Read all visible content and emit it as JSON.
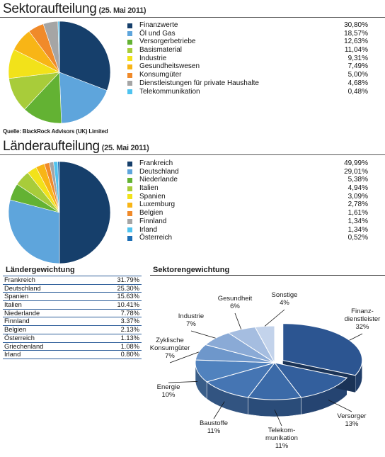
{
  "sector_section": {
    "title": "Sektoraufteilung",
    "date": "(25. Mai 2011)",
    "source": "Quelle: BlackRock Advisors (UK) Limited"
  },
  "country_section": {
    "title": "Länderaufteilung",
    "date": "(25. Mai 2011)"
  },
  "country_weight_title": "Ländergewichtung",
  "sector_weight_title": "Sektorengewichtung",
  "colors": {
    "palette": [
      "#163f6b",
      "#5ea5dc",
      "#63b233",
      "#a8cc3a",
      "#f2e21a",
      "#f8b516",
      "#f08a2a",
      "#a5a5a5",
      "#4fc3ef",
      "#1d6eb5"
    ],
    "table_rule": "#2f5f9a"
  },
  "chart_data": [
    {
      "type": "pie",
      "title": "Sektoraufteilung",
      "categories": [
        "Finanzwerte",
        "Öl und Gas",
        "Versorgerbetriebe",
        "Basismaterial",
        "Industrie",
        "Gesundheitswesen",
        "Konsumgüter",
        "Dienstleistungen für private Haushalte",
        "Telekommunikation"
      ],
      "values": [
        30.8,
        18.57,
        12.63,
        11.04,
        9.31,
        7.49,
        5.0,
        4.68,
        0.48
      ],
      "labels": [
        "30,80%",
        "18,57%",
        "12,63%",
        "11,04%",
        "9,31%",
        "7,49%",
        "5,00%",
        "4,68%",
        "0,48%"
      ],
      "legend": "right"
    },
    {
      "type": "pie",
      "title": "Länderaufteilung",
      "categories": [
        "Frankreich",
        "Deutschland",
        "Niederlande",
        "Italien",
        "Spanien",
        "Luxemburg",
        "Belgien",
        "Finnland",
        "Irland",
        "Österreich"
      ],
      "values": [
        49.99,
        29.01,
        5.38,
        4.94,
        3.09,
        2.78,
        1.61,
        1.34,
        1.34,
        0.52
      ],
      "labels": [
        "49,99%",
        "29,01%",
        "5,38%",
        "4,94%",
        "3,09%",
        "2,78%",
        "1,61%",
        "1,34%",
        "1,34%",
        "0,52%"
      ],
      "legend": "right"
    },
    {
      "type": "table",
      "title": "Ländergewichtung",
      "categories": [
        "Frankreich",
        "Deutschland",
        "Spanien",
        "Italien",
        "Niederlande",
        "Finnland",
        "Belgien",
        "Österreich",
        "Griechenland",
        "Irland"
      ],
      "values": [
        31.79,
        25.3,
        15.63,
        10.41,
        7.78,
        3.37,
        2.13,
        1.13,
        1.08,
        0.8
      ],
      "labels": [
        "31.79%",
        "25.30%",
        "15.63%",
        "10.41%",
        "7.78%",
        "3.37%",
        "2.13%",
        "1.13%",
        "1.08%",
        "0.80%"
      ]
    },
    {
      "type": "pie",
      "title": "Sektorengewichtung",
      "categories": [
        "Finanz-dienstleister",
        "Versorger",
        "Telekom-munikation",
        "Baustoffe",
        "Energie",
        "Zyklische Konsumgüter",
        "Industrie",
        "Gesundheit",
        "Sonstige"
      ],
      "values": [
        32,
        13,
        11,
        11,
        10,
        7,
        7,
        6,
        4
      ],
      "label_lines": [
        [
          "Finanz-",
          "dienstleister",
          "32%"
        ],
        [
          "Versorger",
          "13%"
        ],
        [
          "Telekom-",
          "munikation",
          "11%"
        ],
        [
          "Baustoffe",
          "11%"
        ],
        [
          "Energie",
          "10%"
        ],
        [
          "Zyklische",
          "Konsumgüter",
          "7%"
        ],
        [
          "Industrie",
          "7%"
        ],
        [
          "Gesundheit",
          "6%"
        ],
        [
          "Sonstige",
          "4%"
        ]
      ],
      "colors": [
        "#2c5591",
        "#335f9d",
        "#3b6aa8",
        "#4575b3",
        "#5082be",
        "#6e97cb",
        "#8aaad6",
        "#a5bde0",
        "#c3d3eb"
      ],
      "style": "3d",
      "legend": "none"
    }
  ]
}
